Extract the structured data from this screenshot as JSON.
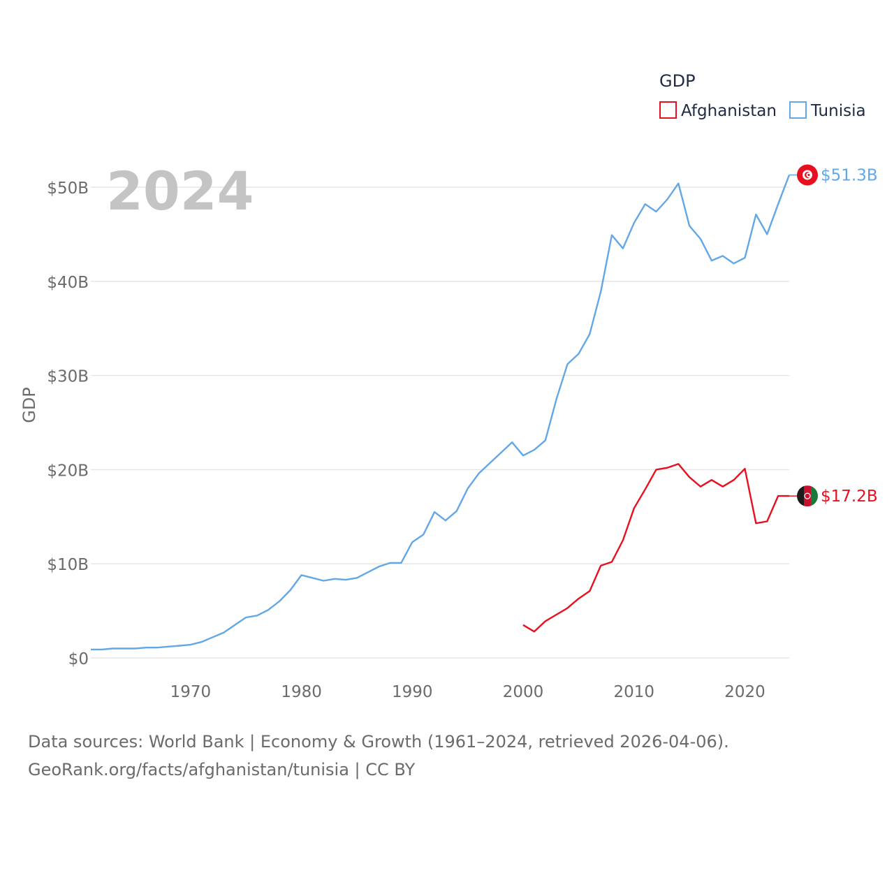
{
  "chart_data": {
    "type": "line",
    "title": "",
    "year_label": "2024",
    "ylabel": "GDP",
    "xlabel": "",
    "legend": {
      "title": "GDP",
      "position": "top-right"
    },
    "xlim": [
      1961,
      2024
    ],
    "ylim": [
      0,
      55
    ],
    "x_ticks": [
      1970,
      1980,
      1990,
      2000,
      2010,
      2020
    ],
    "y_ticks": [
      0,
      10,
      20,
      30,
      40,
      50
    ],
    "y_tick_labels": [
      "$0",
      "$10B",
      "$20B",
      "$30B",
      "$40B",
      "$50B"
    ],
    "units": "billions USD",
    "series": [
      {
        "name": "Afghanistan",
        "color": "#e8101e",
        "end_label": "$17.2B",
        "flag_icon": "afghanistan-flag-icon",
        "x": [
          2000,
          2001,
          2002,
          2003,
          2004,
          2005,
          2006,
          2007,
          2008,
          2009,
          2010,
          2011,
          2012,
          2013,
          2014,
          2015,
          2016,
          2017,
          2018,
          2019,
          2020,
          2021,
          2022,
          2023,
          2024
        ],
        "values": [
          3.5,
          2.8,
          3.9,
          4.6,
          5.3,
          6.3,
          7.1,
          9.8,
          10.2,
          12.5,
          15.9,
          17.9,
          20.0,
          20.2,
          20.6,
          19.2,
          18.2,
          18.9,
          18.2,
          18.9,
          20.1,
          14.3,
          14.5,
          17.2,
          17.2
        ]
      },
      {
        "name": "Tunisia",
        "color": "#62a7e6",
        "end_label": "$51.3B",
        "flag_icon": "tunisia-flag-icon",
        "x": [
          1961,
          1962,
          1963,
          1964,
          1965,
          1966,
          1967,
          1968,
          1969,
          1970,
          1971,
          1972,
          1973,
          1974,
          1975,
          1976,
          1977,
          1978,
          1979,
          1980,
          1981,
          1982,
          1983,
          1984,
          1985,
          1986,
          1987,
          1988,
          1989,
          1990,
          1991,
          1992,
          1993,
          1994,
          1995,
          1996,
          1997,
          1998,
          1999,
          2000,
          2001,
          2002,
          2003,
          2004,
          2005,
          2006,
          2007,
          2008,
          2009,
          2010,
          2011,
          2012,
          2013,
          2014,
          2015,
          2016,
          2017,
          2018,
          2019,
          2020,
          2021,
          2022,
          2023,
          2024
        ],
        "values": [
          0.9,
          0.9,
          1.0,
          1.0,
          1.0,
          1.1,
          1.1,
          1.2,
          1.3,
          1.4,
          1.7,
          2.2,
          2.7,
          3.5,
          4.3,
          4.5,
          5.1,
          6.0,
          7.2,
          8.8,
          8.5,
          8.2,
          8.4,
          8.3,
          8.5,
          9.1,
          9.7,
          10.1,
          10.1,
          12.3,
          13.1,
          15.5,
          14.6,
          15.6,
          18.0,
          19.6,
          20.7,
          21.8,
          22.9,
          21.5,
          22.1,
          23.1,
          27.5,
          31.2,
          32.3,
          34.4,
          38.9,
          44.9,
          43.5,
          46.2,
          48.2,
          47.4,
          48.7,
          50.4,
          45.9,
          44.5,
          42.2,
          42.7,
          41.9,
          42.5,
          47.1,
          45.0,
          48.2,
          51.3
        ]
      }
    ]
  },
  "footer": {
    "line1": "Data sources: World Bank | Economy & Growth (1961–2024, retrieved 2026-04-06).",
    "line2": "GeoRank.org/facts/afghanistan/tunisia | CC BY"
  }
}
